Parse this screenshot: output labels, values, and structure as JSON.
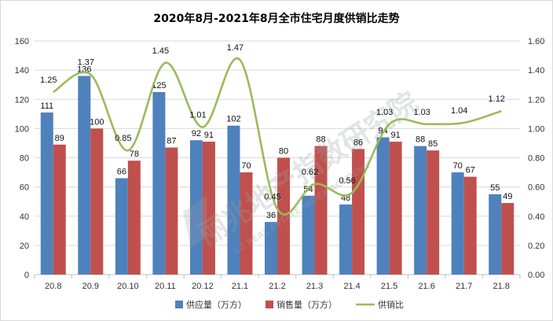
{
  "chart_data": {
    "type": "bar",
    "title": "2020年8月-2021年8月全市住宅月度供销比走势",
    "categories": [
      "20.8",
      "20.9",
      "20.10",
      "20.11",
      "20.12",
      "21.1",
      "21.2",
      "21.3",
      "21.4",
      "21.5",
      "21.6",
      "21.7",
      "21.8"
    ],
    "series": [
      {
        "name": "供应量（万方）",
        "type": "bar",
        "axis": "left",
        "color": "#4f81bd",
        "values": [
          111,
          136,
          66,
          125,
          92,
          102,
          36,
          54,
          48,
          94,
          88,
          70,
          55
        ]
      },
      {
        "name": "销售量（万方）",
        "type": "bar",
        "axis": "left",
        "color": "#c0504d",
        "values": [
          89,
          100,
          78,
          87,
          91,
          70,
          80,
          88,
          86,
          91,
          85,
          67,
          49
        ]
      },
      {
        "name": "供销比",
        "type": "line",
        "axis": "right",
        "color": "#9bbb59",
        "values": [
          1.25,
          1.37,
          0.85,
          1.45,
          1.01,
          1.47,
          0.45,
          0.62,
          0.56,
          1.03,
          1.03,
          1.04,
          1.12
        ]
      }
    ],
    "left_axis": {
      "min": 0,
      "max": 160,
      "step": 20,
      "ticks": [
        "0",
        "20",
        "40",
        "60",
        "80",
        "100",
        "120",
        "140",
        "160"
      ]
    },
    "right_axis": {
      "min": 0,
      "max": 1.6,
      "step": 0.2,
      "ticks": [
        "0.00",
        "0.20",
        "0.40",
        "0.60",
        "0.80",
        "1.00",
        "1.20",
        "1.40",
        "1.60"
      ]
    },
    "grid": true,
    "legend": "bottom"
  },
  "watermark": {
    "text_cn": "丽兆地产指数研究院",
    "text_en": "LZ REAL ESTATE INDEX ACADEMY"
  }
}
